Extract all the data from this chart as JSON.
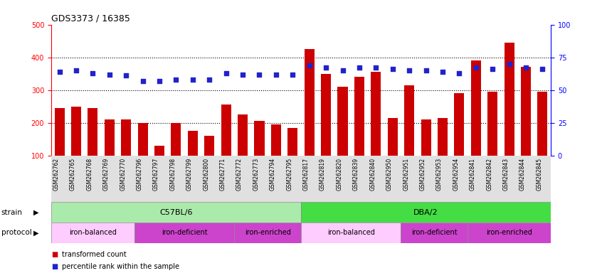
{
  "title": "GDS3373 / 16385",
  "samples": [
    "GSM262762",
    "GSM262765",
    "GSM262768",
    "GSM262769",
    "GSM262770",
    "GSM262796",
    "GSM262797",
    "GSM262798",
    "GSM262799",
    "GSM262800",
    "GSM262771",
    "GSM262772",
    "GSM262773",
    "GSM262794",
    "GSM262795",
    "GSM262817",
    "GSM262819",
    "GSM262820",
    "GSM262839",
    "GSM262840",
    "GSM262950",
    "GSM262951",
    "GSM262952",
    "GSM262953",
    "GSM262954",
    "GSM262841",
    "GSM262842",
    "GSM262843",
    "GSM262844",
    "GSM262845"
  ],
  "bar_values": [
    245,
    250,
    245,
    210,
    210,
    200,
    130,
    200,
    175,
    160,
    255,
    225,
    207,
    195,
    185,
    425,
    350,
    310,
    340,
    355,
    215,
    315,
    210,
    215,
    290,
    390,
    295,
    445,
    370,
    295
  ],
  "dot_values": [
    64,
    65,
    63,
    62,
    61,
    57,
    57,
    58,
    58,
    58,
    63,
    62,
    62,
    62,
    62,
    69,
    67,
    65,
    67,
    67,
    66,
    65,
    65,
    64,
    63,
    67,
    66,
    70,
    67,
    66
  ],
  "bar_color": "#cc0000",
  "dot_color": "#2222cc",
  "ylim_left": [
    100,
    500
  ],
  "ylim_right": [
    0,
    100
  ],
  "yticks_left": [
    100,
    200,
    300,
    400,
    500
  ],
  "yticks_right": [
    0,
    25,
    50,
    75,
    100
  ],
  "grid_values": [
    200,
    300,
    400
  ],
  "strain_groups": [
    {
      "label": "C57BL/6",
      "start": 0,
      "end": 15,
      "color": "#aaeaaa"
    },
    {
      "label": "DBA/2",
      "start": 15,
      "end": 30,
      "color": "#44dd44"
    }
  ],
  "protocol_groups": [
    {
      "label": "iron-balanced",
      "start": 0,
      "end": 5,
      "color": "#ffccff"
    },
    {
      "label": "iron-deficient",
      "start": 5,
      "end": 11,
      "color": "#cc44cc"
    },
    {
      "label": "iron-enriched",
      "start": 11,
      "end": 15,
      "color": "#cc44cc"
    },
    {
      "label": "iron-balanced",
      "start": 15,
      "end": 21,
      "color": "#ffccff"
    },
    {
      "label": "iron-deficient",
      "start": 21,
      "end": 25,
      "color": "#cc44cc"
    },
    {
      "label": "iron-enriched",
      "start": 25,
      "end": 30,
      "color": "#cc44cc"
    }
  ],
  "strain_label": "strain",
  "protocol_label": "protocol",
  "legend_bar": "transformed count",
  "legend_dot": "percentile rank within the sample",
  "plot_bg": "#ffffff",
  "tick_area_bg": "#e0e0e0"
}
